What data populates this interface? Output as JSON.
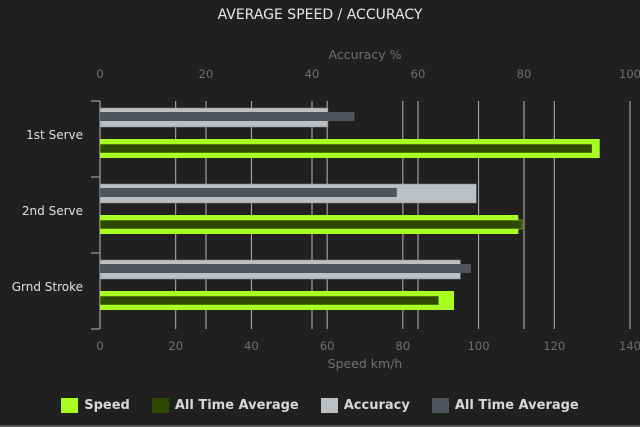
{
  "chart_data": {
    "type": "bar",
    "orientation": "horizontal",
    "title": "AVERAGE SPEED / ACCURACY",
    "categories": [
      "1st Serve",
      "2nd Serve",
      "Grnd Stroke"
    ],
    "speed_axis": {
      "label": "Speed km/h",
      "range": [
        0,
        140
      ],
      "ticks": [
        0,
        20,
        40,
        60,
        80,
        100,
        120,
        140
      ],
      "position": "bottom"
    },
    "accuracy_axis": {
      "label": "Accuracy %",
      "range": [
        0,
        100
      ],
      "ticks": [
        0,
        20,
        40,
        60,
        80,
        100
      ],
      "position": "top"
    },
    "series": [
      {
        "name": "Speed",
        "axis": "speed",
        "color": "#aaff22",
        "values": [
          132,
          110.5,
          93.5
        ]
      },
      {
        "name": "All Time Average",
        "axis": "speed",
        "color": "#2e4a00",
        "values": [
          130,
          111.5,
          89.5
        ]
      },
      {
        "name": "Accuracy",
        "axis": "accuracy",
        "color": "#bcc0c2",
        "values": [
          43,
          71,
          68
        ]
      },
      {
        "name": "All Time Average",
        "axis": "accuracy",
        "color": "#50555b",
        "values": [
          48,
          56,
          70
        ]
      }
    ],
    "grid": true,
    "legend": "bottom"
  }
}
